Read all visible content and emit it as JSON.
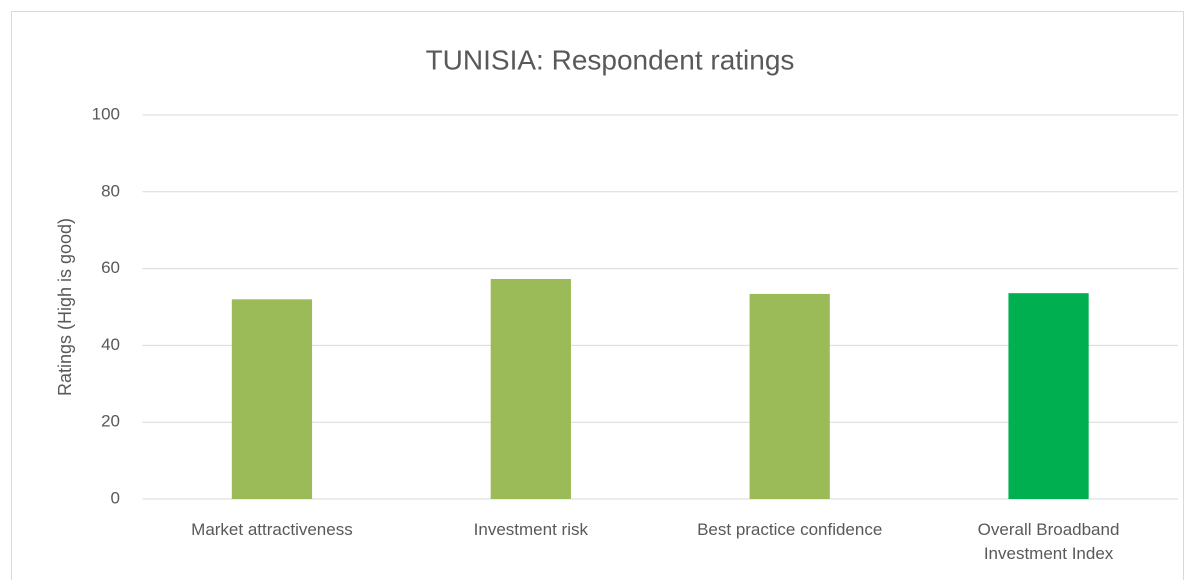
{
  "chart_data": {
    "type": "bar",
    "title": "TUNISIA: Respondent ratings",
    "y_label": "Ratings (High is good)",
    "categories": [
      "Market attractiveness",
      "Investment risk",
      "Best practice confidence",
      "Overall Broadband Investment Index"
    ],
    "values": [
      52,
      57.3,
      53.4,
      53.6
    ],
    "colors": [
      "#9bbb59",
      "#9bbb59",
      "#9bbb59",
      "#00b050"
    ],
    "ylim": [
      0,
      100
    ],
    "yticks": [
      0,
      20,
      40,
      60,
      80,
      100
    ],
    "grid": true
  }
}
